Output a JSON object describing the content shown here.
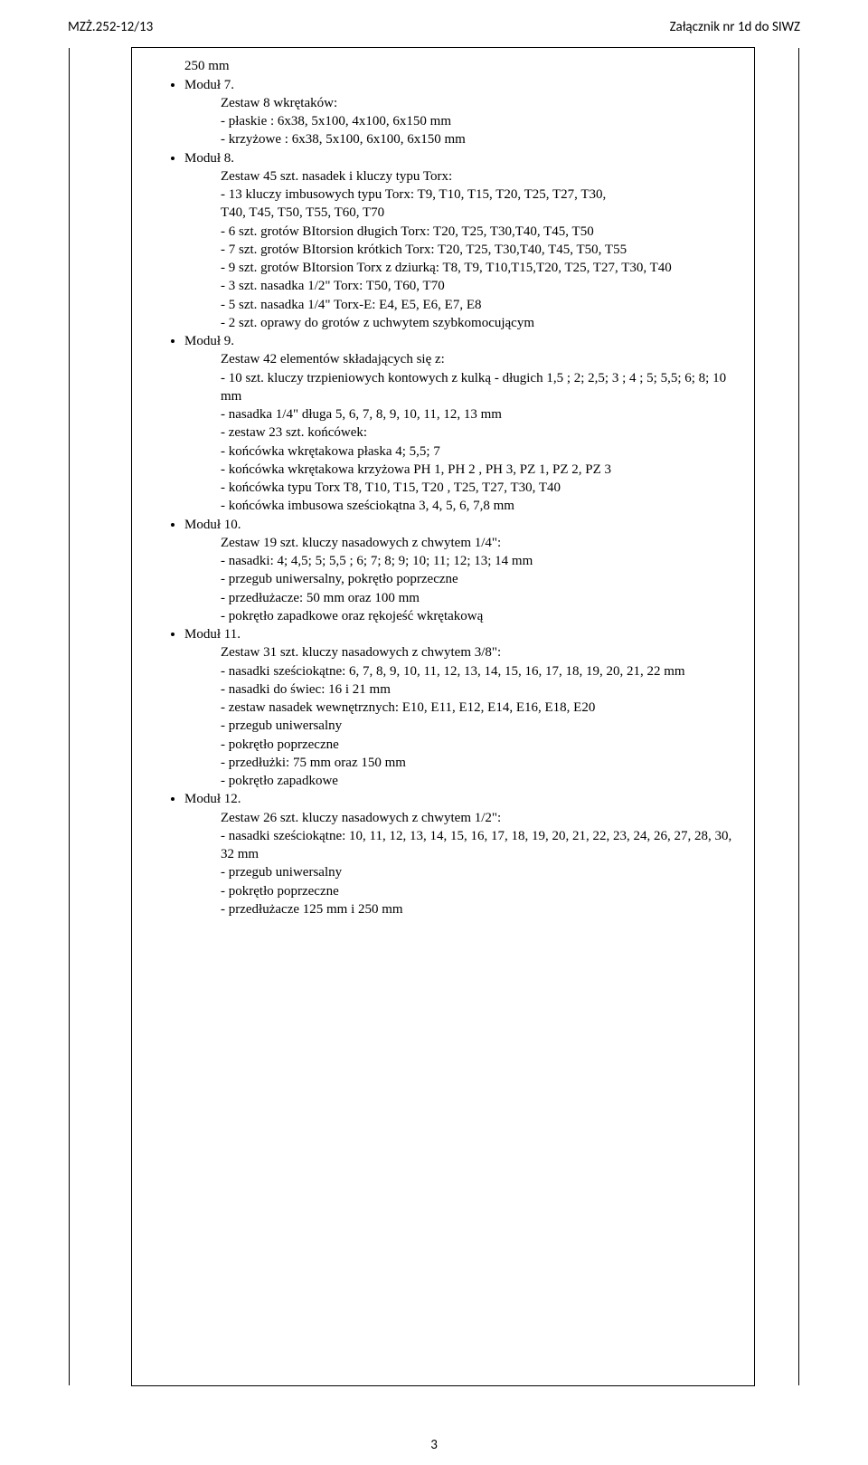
{
  "header": {
    "left": "MZŻ.252-12/13",
    "right": "Załącznik nr 1d do SIWZ"
  },
  "topLine": "250 mm",
  "sections": [
    {
      "bullet": "Moduł 7.",
      "lines": [
        "Zestaw 8 wkrętaków:",
        "- płaskie : 6x38, 5x100, 4x100, 6x150 mm",
        "- krzyżowe : 6x38, 5x100, 6x100, 6x150 mm"
      ]
    },
    {
      "bullet": "Moduł 8.",
      "lines": [
        "Zestaw 45 szt. nasadek i kluczy typu Torx:",
        "- 13 kluczy imbusowych typu Torx: T9, T10, T15, T20, T25, T27, T30,",
        "   T40, T45, T50, T55, T60, T70",
        "- 6 szt. grotów BItorsion długich Torx: T20, T25, T30,T40, T45, T50",
        "- 7 szt. grotów BItorsion krótkich Torx: T20, T25, T30,T40, T45, T50, T55",
        "- 9 szt. grotów BItorsion Torx z dziurką: T8, T9, T10,T15,T20, T25, T27,  T30, T40",
        "- 3 szt. nasadka 1/2\" Torx: T50, T60, T70",
        "- 5 szt. nasadka 1/4\" Torx-E: E4, E5, E6, E7, E8",
        "- 2 szt. oprawy do grotów z uchwytem szybkomocującym"
      ]
    },
    {
      "bullet": "Moduł 9.",
      "lines": [
        "Zestaw 42 elementów składających się z:",
        "- 10 szt. kluczy trzpieniowych kontowych z kulką - długich 1,5 ; 2; 2,5; 3 ; 4 ; 5; 5,5; 6; 8; 10 mm",
        "- nasadka 1/4\" długa 5, 6, 7, 8, 9, 10, 11, 12, 13 mm",
        "- zestaw 23 szt. końcówek:",
        "- końcówka wkrętakowa płaska 4; 5,5; 7",
        "- końcówka wkrętakowa krzyżowa PH 1, PH 2 , PH 3, PZ 1, PZ 2, PZ 3",
        "- końcówka typu Torx T8, T10, T15, T20 , T25, T27, T30, T40",
        "- końcówka imbusowa sześciokątna 3, 4, 5, 6, 7,8 mm"
      ]
    },
    {
      "bullet": "Moduł 10.",
      "lines": [
        "Zestaw 19 szt. kluczy nasadowych z chwytem 1/4\":",
        "- nasadki: 4; 4,5; 5; 5,5 ; 6; 7; 8; 9; 10; 11; 12; 13; 14 mm",
        "- przegub uniwersalny, pokrętło poprzeczne",
        "- przedłużacze: 50 mm oraz 100 mm",
        "- pokrętło zapadkowe oraz rękojeść wkrętakową"
      ]
    },
    {
      "bullet": "Moduł 11.",
      "lines": [
        "Zestaw 31 szt. kluczy nasadowych z chwytem 3/8\":",
        "- nasadki sześciokątne: 6, 7, 8, 9, 10, 11, 12, 13, 14, 15, 16, 17, 18, 19, 20, 21, 22 mm",
        "- nasadki do świec: 16 i 21 mm",
        "- zestaw nasadek wewnętrznych: E10, E11, E12, E14, E16, E18, E20",
        "- przegub uniwersalny",
        "- pokrętło poprzeczne",
        "- przedłużki: 75 mm oraz 150 mm",
        "- pokrętło zapadkowe"
      ]
    },
    {
      "bullet": "Moduł 12.",
      "lines": [
        "Zestaw 26 szt. kluczy nasadowych z chwytem 1/2\":",
        "- nasadki sześciokątne: 10, 11, 12, 13, 14, 15, 16, 17, 18, 19, 20, 21, 22, 23, 24, 26, 27, 28, 30, 32 mm",
        "- przegub uniwersalny",
        "- pokrętło poprzeczne",
        "- przedłużacze 125 mm i 250 mm"
      ]
    }
  ],
  "pageNumber": "3"
}
